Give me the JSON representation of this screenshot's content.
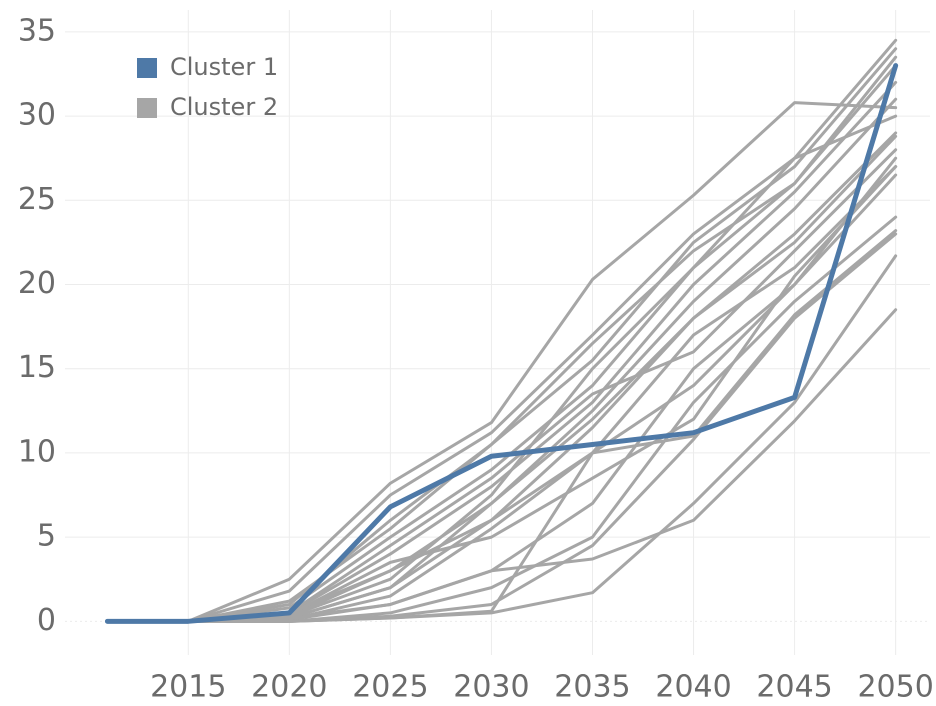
{
  "chart_data": {
    "type": "line",
    "x": [
      2011,
      2015,
      2020,
      2025,
      2030,
      2035,
      2040,
      2045,
      2050
    ],
    "xlim": [
      2008.9,
      2051.7
    ],
    "xticks": [
      2015,
      2020,
      2025,
      2030,
      2035,
      2040,
      2045,
      2050
    ],
    "ylim": [
      -2,
      36.3
    ],
    "yticks": [
      0,
      5,
      10,
      15,
      20,
      25,
      30,
      35
    ],
    "grid": true,
    "legend": "upper left",
    "series": [
      {
        "name": "Cluster 1",
        "color": "#4e79a7",
        "lines": [
          [
            0,
            0,
            0.5,
            6.8,
            9.8,
            10.5,
            11.2,
            13.3,
            33
          ]
        ]
      },
      {
        "name": "Cluster 2",
        "color": "#a6a6a6",
        "lines": [
          [
            0,
            0,
            2.5,
            8.2,
            11.8,
            20.3,
            25.3,
            30.8,
            30.5
          ],
          [
            0,
            0,
            1.8,
            7.5,
            11.2,
            17,
            23,
            27.5,
            34.5
          ],
          [
            0,
            0,
            1.2,
            5.5,
            10.5,
            15.5,
            22.5,
            27,
            34
          ],
          [
            0,
            0,
            0.8,
            5,
            9,
            14,
            21,
            26,
            33
          ],
          [
            0,
            0,
            0.5,
            4,
            8,
            13,
            20,
            25.5,
            32
          ],
          [
            0,
            0,
            0.3,
            3,
            7,
            12.5,
            19,
            24.5,
            31
          ],
          [
            0,
            0,
            0.2,
            2,
            6,
            11.5,
            18,
            23,
            29
          ],
          [
            0,
            0,
            0.5,
            4.5,
            8.5,
            13.5,
            16,
            22,
            28
          ],
          [
            0,
            0,
            0.1,
            1.5,
            5.5,
            10,
            17,
            21,
            27
          ],
          [
            0,
            0,
            0.1,
            1,
            3,
            7,
            15,
            20,
            26.5
          ],
          [
            0,
            0,
            0,
            0.5,
            2,
            5,
            13,
            19,
            24
          ],
          [
            0,
            0,
            0,
            0.3,
            1,
            4.5,
            10.8,
            18,
            23
          ],
          [
            0,
            0,
            0,
            0.2,
            0.5,
            1.7,
            7,
            13,
            21.7
          ],
          [
            0,
            0,
            0.2,
            1,
            3,
            3.7,
            6,
            11.9,
            18.5
          ],
          [
            0,
            0,
            0.5,
            3,
            6,
            10,
            14,
            20,
            27.5
          ],
          [
            0,
            0,
            0.3,
            2.5,
            7.5,
            15,
            21,
            27.5,
            30
          ],
          [
            0,
            0,
            1,
            6,
            10.5,
            16.5,
            22,
            26,
            33.5
          ],
          [
            0,
            0,
            0,
            0.2,
            0.6,
            10,
            11,
            18.2,
            23.2
          ],
          [
            0,
            0,
            0.2,
            2,
            7,
            12,
            18,
            22.5,
            28.8
          ],
          [
            0,
            0,
            0.4,
            3.5,
            5,
            8.5,
            12,
            20.5,
            27
          ]
        ]
      }
    ]
  }
}
